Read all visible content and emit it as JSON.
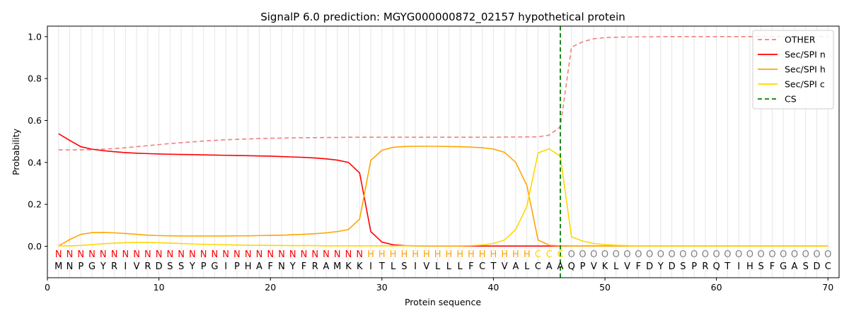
{
  "chart_data": {
    "type": "line",
    "title": "SignalP 6.0 prediction: MGYG000000872_02157 hypothetical protein",
    "xlabel": "Protein sequence",
    "ylabel": "Probability",
    "xlim": [
      0,
      71
    ],
    "ylim": [
      -0.15,
      1.05
    ],
    "x_ticks": [
      0,
      10,
      20,
      30,
      40,
      50,
      60,
      70
    ],
    "y_ticks": [
      0.0,
      0.2,
      0.4,
      0.6,
      0.8,
      1.0
    ],
    "legend_position": "top-right",
    "sequence": [
      "M",
      "N",
      "P",
      "G",
      "Y",
      "R",
      "I",
      "V",
      "R",
      "D",
      "S",
      "S",
      "Y",
      "P",
      "G",
      "I",
      "P",
      "H",
      "A",
      "F",
      "N",
      "Y",
      "F",
      "R",
      "A",
      "M",
      "K",
      "K",
      "I",
      "T",
      "L",
      "S",
      "I",
      "V",
      "L",
      "L",
      "L",
      "F",
      "C",
      "T",
      "V",
      "A",
      "L",
      "C",
      "A",
      "A",
      "Q",
      "P",
      "V",
      "K",
      "L",
      "V",
      "F",
      "D",
      "Y",
      "D",
      "S",
      "P",
      "R",
      "Q",
      "T",
      "I",
      "H",
      "S",
      "F",
      "G",
      "A",
      "S",
      "D",
      "C"
    ],
    "region_labels": [
      "N",
      "N",
      "N",
      "N",
      "N",
      "N",
      "N",
      "N",
      "N",
      "N",
      "N",
      "N",
      "N",
      "N",
      "N",
      "N",
      "N",
      "N",
      "N",
      "N",
      "N",
      "N",
      "N",
      "N",
      "N",
      "N",
      "N",
      "N",
      "H",
      "H",
      "H",
      "H",
      "H",
      "H",
      "H",
      "H",
      "H",
      "H",
      "H",
      "H",
      "H",
      "H",
      "H",
      "C",
      "C",
      "C",
      "O",
      "O",
      "O",
      "O",
      "O",
      "O",
      "O",
      "O",
      "O",
      "O",
      "O",
      "O",
      "O",
      "O",
      "O",
      "O",
      "O",
      "O",
      "O",
      "O",
      "O",
      "O",
      "O",
      "O"
    ],
    "region_colors": {
      "N": "#ff0000",
      "H": "#ffa500",
      "C": "#ffd700",
      "O": "#808080"
    },
    "cleavage_site": 46,
    "series": [
      {
        "name": "OTHER",
        "color": "#f08080",
        "dash": "dashed",
        "values": [
          0.46,
          0.46,
          0.46,
          0.461,
          0.463,
          0.466,
          0.47,
          0.475,
          0.48,
          0.485,
          0.49,
          0.494,
          0.498,
          0.502,
          0.505,
          0.508,
          0.51,
          0.512,
          0.514,
          0.515,
          0.516,
          0.517,
          0.518,
          0.518,
          0.519,
          0.519,
          0.52,
          0.52,
          0.52,
          0.52,
          0.52,
          0.52,
          0.52,
          0.52,
          0.52,
          0.52,
          0.52,
          0.52,
          0.52,
          0.52,
          0.521,
          0.521,
          0.522,
          0.522,
          0.53,
          0.57,
          0.95,
          0.975,
          0.99,
          0.995,
          0.997,
          0.998,
          0.999,
          0.999,
          1.0,
          1.0,
          1.0,
          1.0,
          1.0,
          1.0,
          1.0,
          1.0,
          1.0,
          1.0,
          1.0,
          1.0,
          1.0,
          1.0,
          1.0,
          1.0
        ]
      },
      {
        "name": "Sec/SPI n",
        "color": "#ff0000",
        "dash": "solid",
        "values": [
          0.537,
          0.505,
          0.475,
          0.463,
          0.456,
          0.451,
          0.447,
          0.444,
          0.442,
          0.44,
          0.439,
          0.438,
          0.437,
          0.436,
          0.435,
          0.434,
          0.433,
          0.432,
          0.431,
          0.43,
          0.428,
          0.426,
          0.424,
          0.421,
          0.417,
          0.411,
          0.4,
          0.35,
          0.07,
          0.02,
          0.007,
          0.003,
          0.002,
          0.001,
          0.001,
          0.001,
          0.001,
          0.001,
          0.001,
          0.001,
          0.001,
          0.001,
          0.001,
          0.001,
          0.001,
          0.001,
          0.001,
          0.001,
          0.001,
          0.001,
          0.001,
          0.001,
          0.001,
          0.001,
          0.001,
          0.001,
          0.001,
          0.001,
          0.001,
          0.001,
          0.001,
          0.001,
          0.001,
          0.001,
          0.001,
          0.001,
          0.001,
          0.001,
          0.001,
          0.001
        ]
      },
      {
        "name": "Sec/SPI h",
        "color": "#ffa500",
        "dash": "solid",
        "values": [
          0.002,
          0.032,
          0.057,
          0.065,
          0.066,
          0.064,
          0.061,
          0.057,
          0.053,
          0.051,
          0.05,
          0.049,
          0.049,
          0.049,
          0.049,
          0.049,
          0.05,
          0.05,
          0.051,
          0.052,
          0.053,
          0.055,
          0.057,
          0.06,
          0.064,
          0.07,
          0.08,
          0.13,
          0.41,
          0.458,
          0.472,
          0.476,
          0.477,
          0.477,
          0.477,
          0.476,
          0.475,
          0.473,
          0.47,
          0.464,
          0.448,
          0.4,
          0.29,
          0.03,
          0.005,
          0.002,
          0.001,
          0.001,
          0.001,
          0.001,
          0.001,
          0.001,
          0.001,
          0.001,
          0.001,
          0.001,
          0.001,
          0.001,
          0.001,
          0.001,
          0.001,
          0.001,
          0.001,
          0.001,
          0.001,
          0.001,
          0.001,
          0.001,
          0.001,
          0.001
        ]
      },
      {
        "name": "Sec/SPI c",
        "color": "#ffd700",
        "dash": "solid",
        "values": [
          0.002,
          0.002,
          0.004,
          0.008,
          0.012,
          0.015,
          0.017,
          0.018,
          0.018,
          0.017,
          0.015,
          0.013,
          0.011,
          0.009,
          0.008,
          0.007,
          0.006,
          0.005,
          0.005,
          0.004,
          0.004,
          0.003,
          0.003,
          0.003,
          0.002,
          0.002,
          0.002,
          0.002,
          0.002,
          0.002,
          0.002,
          0.002,
          0.002,
          0.002,
          0.002,
          0.002,
          0.002,
          0.003,
          0.006,
          0.013,
          0.03,
          0.08,
          0.19,
          0.445,
          0.465,
          0.43,
          0.045,
          0.025,
          0.013,
          0.008,
          0.005,
          0.003,
          0.002,
          0.002,
          0.002,
          0.002,
          0.002,
          0.002,
          0.002,
          0.002,
          0.002,
          0.002,
          0.002,
          0.002,
          0.002,
          0.002,
          0.002,
          0.002,
          0.002,
          0.002
        ]
      },
      {
        "name": "CS",
        "color": "#008000",
        "dash": "dashed",
        "values": []
      }
    ]
  }
}
